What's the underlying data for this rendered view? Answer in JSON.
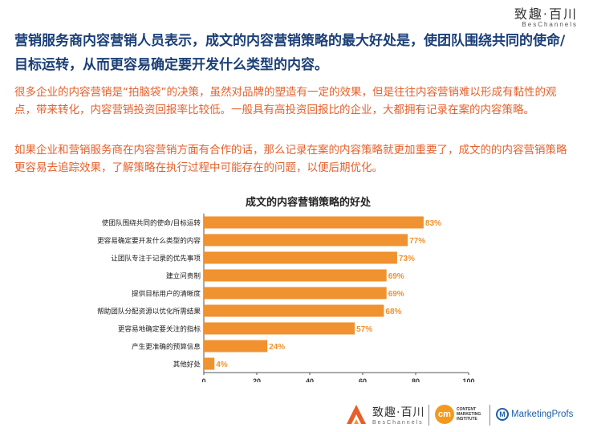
{
  "brand": {
    "name": "致趣·百川",
    "sub": "BesChannels"
  },
  "headline": "营销服务商内容营销人员表示，成文的内容营销策略的最大好处是，使团队围绕共同的使命/目标运转，从而更容易确定要开发什么类型的内容。",
  "paragraph1": "很多企业的内容营销是“拍脑袋”的决策，虽然对品牌的塑造有一定的效果，但是往往内容营销难以形成有黏性的观点，带来转化，内容营销投资回报率比较低。一般具有高投资回报比的企业，大都拥有记录在案的内容策略。",
  "paragraph2": "如果企业和营销服务商在内容营销方面有合作的话，那么记录在案的内容策略就更加重要了，成文的的内容营销策略更容易去追踪效果，了解策略在执行过程中可能存在的问题，以便后期优化。",
  "chart_data": {
    "type": "bar",
    "orientation": "horizontal",
    "title": "成文的内容营销策略的好处",
    "categories": [
      "使团队围绕共同的使命/目标运转",
      "更容易确定要开发什么类型的内容",
      "让团队专注于记录的优先事项",
      "建立问责制",
      "提供目标用户的清晰度",
      "帮助团队分配资源以优化所需结果",
      "更容易地确定要关注的指标",
      "产生更准确的预算信息",
      "其他好处"
    ],
    "values": [
      83,
      77,
      73,
      69,
      69,
      68,
      57,
      24,
      4
    ],
    "value_labels": [
      "83%",
      "77%",
      "73%",
      "69%",
      "69%",
      "68%",
      "57%",
      "24%",
      "4%"
    ],
    "xlim": [
      0,
      100
    ],
    "xticks": [
      "0",
      "20",
      "40",
      "60",
      "80",
      "100"
    ],
    "grid": false,
    "bar_color": "#ef922f",
    "label_color": "#ef922f"
  },
  "footer": {
    "brand_name": "致趣·百川",
    "brand_sub": "BesChannels",
    "cmi_mark": "cm",
    "cmi_lines": [
      "CONTENT",
      "MARKETING",
      "INSTITUTE"
    ],
    "mp_mark": "M",
    "mp_name": "MarketingProfs"
  },
  "colors": {
    "headline": "#1b3f78",
    "body": "#e4612c",
    "accent": "#ef922f"
  }
}
